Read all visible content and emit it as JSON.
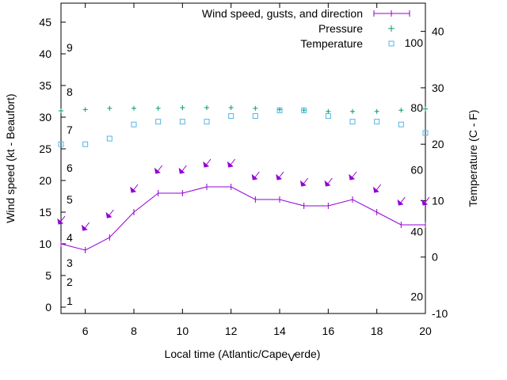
{
  "chart_data": {
    "type": "line",
    "title": "",
    "xlabel": "Local time (Atlantic/Cape_Verde)",
    "xlabel_parts": [
      "Local time (Atlantic/Cape",
      "V",
      "erde)"
    ],
    "ylabel": "Wind speed (kt - Beaufort)",
    "y2label": "Temperature (C - F)",
    "xlim": [
      5,
      20
    ],
    "ylim": [
      -1,
      48
    ],
    "y2lim": [
      -10,
      45
    ],
    "x_ticks": [
      6,
      8,
      10,
      12,
      14,
      16,
      18,
      20
    ],
    "y_ticks": [
      0,
      5,
      10,
      15,
      20,
      25,
      30,
      35,
      40,
      45
    ],
    "y2_ticks": [
      -10,
      0,
      10,
      20,
      30,
      40
    ],
    "beaufort_labels": [
      {
        "text": "1",
        "y": 1
      },
      {
        "text": "2",
        "y": 4
      },
      {
        "text": "3",
        "y": 7
      },
      {
        "text": "4",
        "y": 11
      },
      {
        "text": "5",
        "y": 17
      },
      {
        "text": "6",
        "y": 22
      },
      {
        "text": "7",
        "y": 28
      },
      {
        "text": "8",
        "y": 34
      },
      {
        "text": "9",
        "y": 41
      }
    ],
    "fahrenheit_labels": [
      {
        "text": "20",
        "y2": -7
      },
      {
        "text": "40",
        "y2": 4.5
      },
      {
        "text": "60",
        "y2": 15.5
      },
      {
        "text": "80",
        "y2": 26.5
      },
      {
        "text": "100",
        "y2": 38
      }
    ],
    "legend_position": "top-right",
    "series": [
      {
        "name": "Wind speed, gusts, and direction",
        "color": "#9400d3",
        "x": [
          5,
          6,
          7,
          8,
          9,
          10,
          11,
          12,
          13,
          14,
          15,
          16,
          17,
          18,
          19,
          20
        ],
        "values": [
          10,
          9,
          11,
          15,
          18,
          18,
          19,
          19,
          17,
          17,
          16,
          16,
          17,
          15,
          13,
          13
        ],
        "gusts": [
          13.5,
          12.5,
          14.5,
          18.5,
          21.5,
          21.5,
          22.5,
          22.5,
          20.5,
          20.5,
          19.5,
          19.5,
          20.5,
          18.5,
          16.5,
          16.5
        ]
      },
      {
        "name": "Pressure",
        "color": "#009e73",
        "x": [
          5,
          6,
          7,
          8,
          9,
          10,
          11,
          12,
          13,
          14,
          15,
          16,
          17,
          18,
          19,
          20
        ],
        "values": [
          31,
          31.2,
          31.4,
          31.4,
          31.4,
          31.5,
          31.5,
          31.5,
          31.4,
          31.2,
          31.1,
          30.9,
          30.9,
          30.9,
          31.1,
          31.3
        ]
      },
      {
        "name": "Temperature",
        "color": "#56b4e9",
        "axis": "y2",
        "x": [
          5,
          6,
          7,
          8,
          9,
          10,
          11,
          12,
          13,
          14,
          15,
          16,
          17,
          18,
          19,
          20
        ],
        "values": [
          20,
          20,
          21,
          23.5,
          24,
          24,
          24,
          25,
          25,
          26,
          26,
          25,
          24,
          24,
          23.5,
          22
        ]
      }
    ]
  }
}
